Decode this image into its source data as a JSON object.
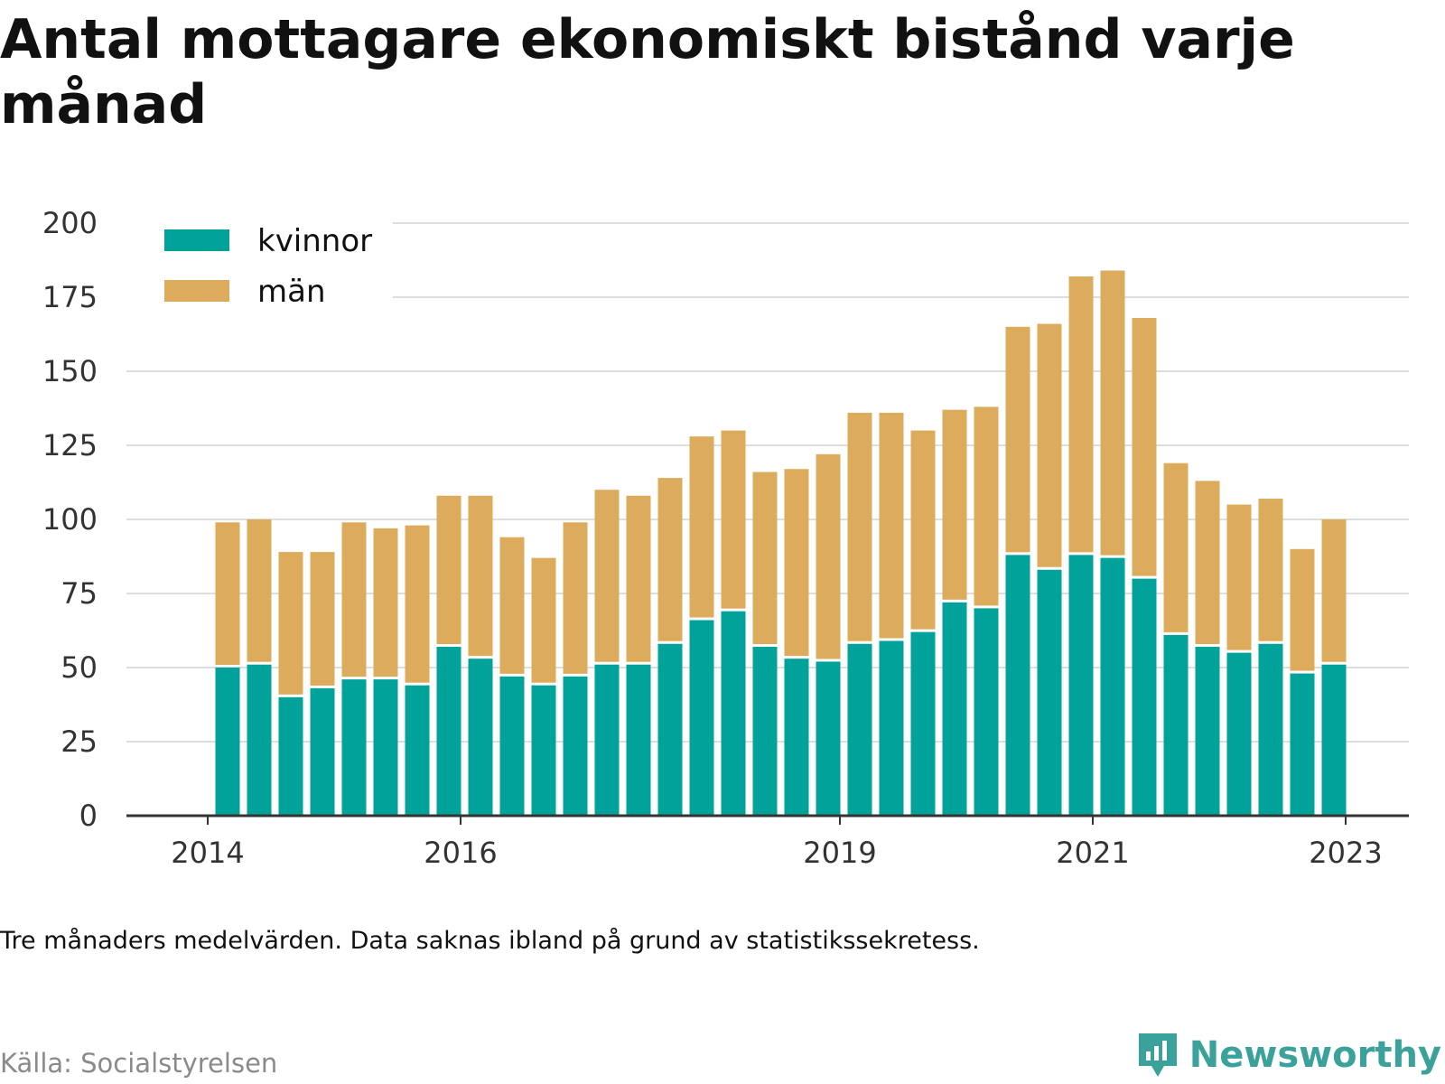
{
  "title": "Antal mottagare ekonomiskt bistånd varje månad",
  "footnote": "Tre månaders medelvärden. Data saknas ibland på grund av statistikssekretess.",
  "source": "Källa: Socialstyrelsen",
  "brand": {
    "name": "Newsworthy",
    "icon": "newsworthy-logo-icon",
    "color": "#3aa29a"
  },
  "colors": {
    "kvinnor": "#00a29a",
    "man": "#dcac5c",
    "grid": "#dddddd",
    "axis": "#333333"
  },
  "chart_data": {
    "type": "bar",
    "stacked": true,
    "ylim": [
      0,
      200
    ],
    "yticks": [
      0,
      25,
      50,
      75,
      100,
      125,
      150,
      175,
      200
    ],
    "xticks": [
      {
        "label": "2014",
        "pos": -1
      },
      {
        "label": "2016",
        "pos": 7
      },
      {
        "label": "2019",
        "pos": 19
      },
      {
        "label": "2021",
        "pos": 27
      },
      {
        "label": "2023",
        "pos": 35
      }
    ],
    "grid": true,
    "legend": {
      "position": "top-left"
    },
    "series": [
      {
        "name": "kvinnor",
        "color": "#00a29a",
        "values": [
          50,
          51,
          40,
          43,
          46,
          46,
          44,
          57,
          53,
          47,
          44,
          47,
          51,
          51,
          58,
          66,
          69,
          57,
          53,
          52,
          58,
          59,
          62,
          72,
          70,
          88,
          83,
          88,
          87,
          80,
          61,
          57,
          55,
          58,
          48,
          51
        ]
      },
      {
        "name": "män",
        "color": "#dcac5c",
        "values": [
          49,
          49,
          49,
          46,
          53,
          51,
          54,
          51,
          55,
          47,
          43,
          52,
          59,
          57,
          56,
          62,
          61,
          59,
          64,
          70,
          78,
          77,
          68,
          65,
          68,
          77,
          83,
          94,
          97,
          88,
          58,
          56,
          50,
          49,
          42,
          49
        ]
      }
    ]
  }
}
